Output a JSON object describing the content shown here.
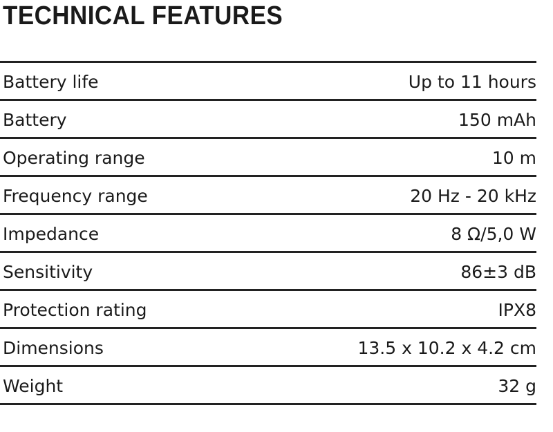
{
  "header": {
    "title": "TECHNICAL FEATURES"
  },
  "table": {
    "rows": [
      [
        "Battery life",
        "Up to 11 hours"
      ],
      [
        "Battery",
        "150 mAh"
      ],
      [
        "Operating range",
        "10 m"
      ],
      [
        "Frequency range",
        "20 Hz - 20 kHz"
      ],
      [
        "Impedance",
        "8 Ω/5,0 W"
      ],
      [
        "Sensitivity",
        "86±3 dB"
      ],
      [
        "Protection rating",
        "IPX8"
      ],
      [
        "Dimensions",
        "13.5 x 10.2 x 4.2 cm"
      ],
      [
        "Weight",
        "32 g"
      ]
    ]
  }
}
